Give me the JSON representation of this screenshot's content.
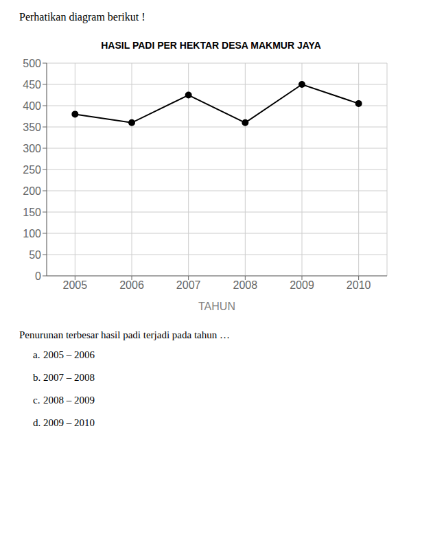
{
  "chart_data": {
    "type": "line",
    "title": "HASIL PADI PER HEKTAR DESA MAKMUR JAYA",
    "xlabel": "TAHUN",
    "x": [
      2005,
      2006,
      2007,
      2008,
      2009,
      2010
    ],
    "values": [
      380,
      360,
      425,
      360,
      450,
      405
    ],
    "color": "#000000",
    "marker": "circle",
    "xlim": [
      2004.5,
      2010.5
    ],
    "xticks": [
      2005,
      2006,
      2007,
      2008,
      2009,
      2010
    ],
    "ylim": [
      0,
      500
    ],
    "yticks": [
      0,
      50,
      100,
      150,
      200,
      250,
      300,
      350,
      400,
      450,
      500
    ],
    "grid": true,
    "annotations": [
      "Perhatikan diagram berikut !",
      "Penurunan terbesar hasil padi terjadi pada tahun …",
      "a.\t2005 – 2006",
      "b.\t2007 – 2008",
      "c.\t2008 – 2009",
      "d.\t2009 – 2010"
    ]
  }
}
